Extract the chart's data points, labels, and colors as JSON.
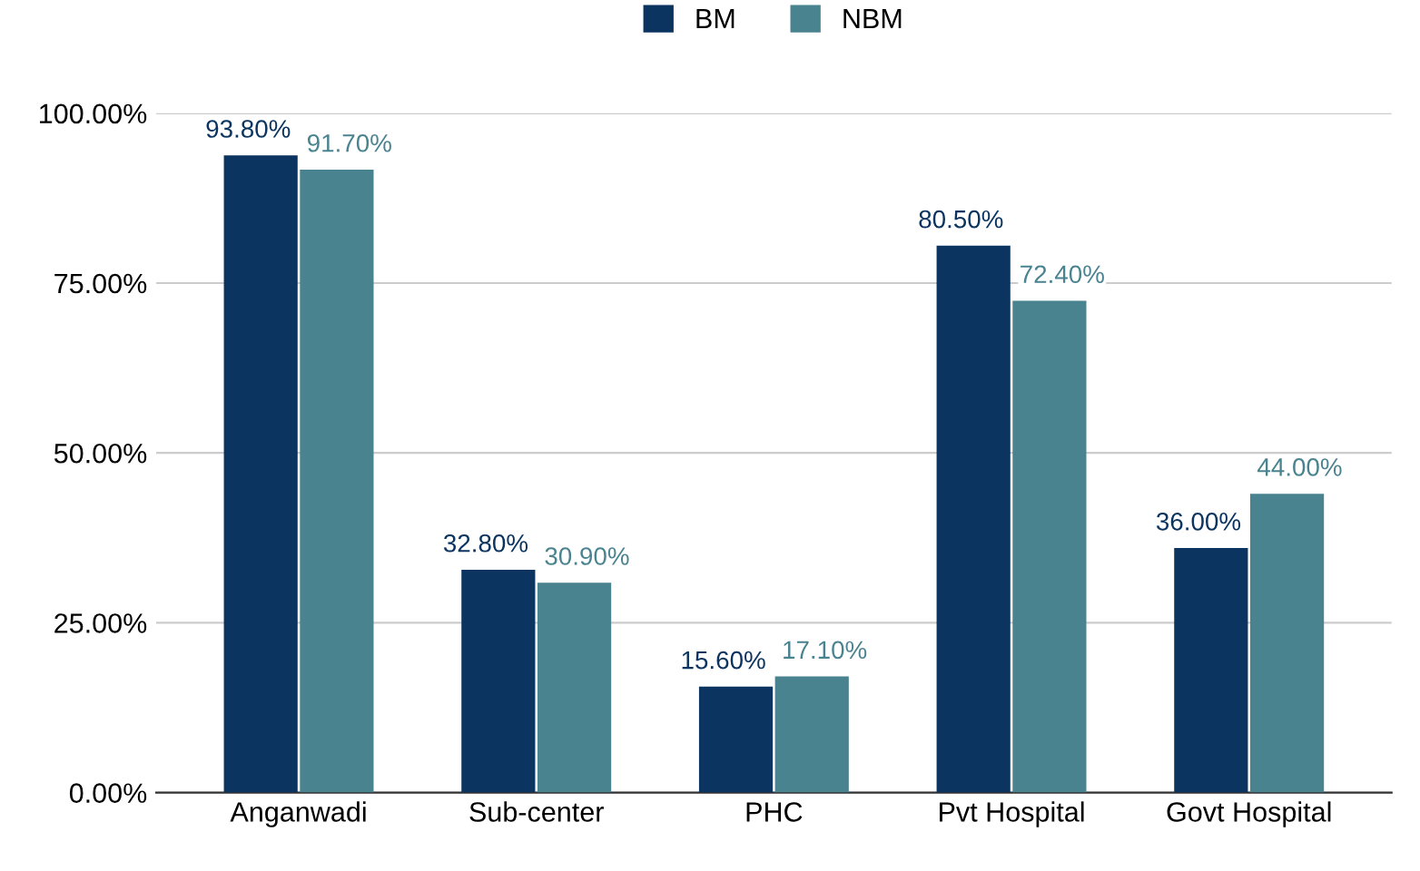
{
  "chart_data": {
    "type": "bar",
    "categories": [
      "Anganwadi",
      "Sub-center",
      "PHC",
      "Pvt Hospital",
      "Govt Hospital"
    ],
    "series": [
      {
        "name": "BM",
        "color": "#0b3560",
        "values": [
          93.8,
          32.8,
          15.6,
          80.5,
          36.0
        ],
        "value_labels": [
          "93.80%",
          "32.80%",
          "15.60%",
          "80.50%",
          "36.00%"
        ]
      },
      {
        "name": "NBM",
        "color": "#4a8390",
        "values": [
          91.7,
          30.9,
          17.1,
          72.4,
          44.0
        ],
        "value_labels": [
          "91.70%",
          "30.90%",
          "17.10%",
          "72.40%",
          "44.00%"
        ]
      }
    ],
    "ylim": [
      0,
      100
    ],
    "yticks": [
      {
        "value": 0,
        "label": "0.00%"
      },
      {
        "value": 25,
        "label": "25.00%"
      },
      {
        "value": 50,
        "label": "50.00%"
      },
      {
        "value": 75,
        "label": "75.00%"
      },
      {
        "value": 100,
        "label": "100.00%"
      }
    ],
    "grid": "y",
    "legend": "top"
  }
}
